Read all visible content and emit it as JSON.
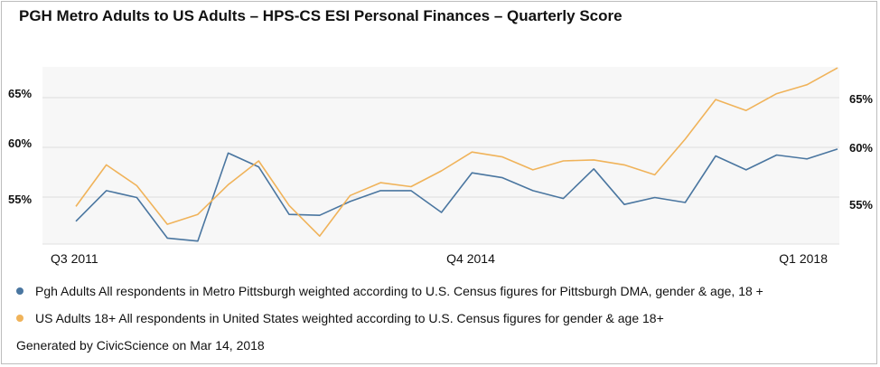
{
  "title": "PGH Metro Adults to US Adults – HPS-CS ESI Personal Finances – Quarterly Score",
  "footer": "Generated by CivicScience on Mar 14, 2018",
  "colors": {
    "pgh": "#4a76a0",
    "us": "#f0b35a",
    "plot_bg": "#f7f7f7",
    "grid": "#dcdcdc"
  },
  "chart_data": {
    "type": "line",
    "title": "PGH Metro Adults to US Adults – HPS-CS ESI Personal Finances – Quarterly Score",
    "x_labels": [
      "Q3 2011",
      "Q4 2014",
      "Q1 2018"
    ],
    "y_ticks_left": [
      "65%",
      "60%",
      "55%"
    ],
    "y_ticks_right": [
      "65%",
      "60%",
      "55%"
    ],
    "ylim": [
      50.3,
      68.2
    ],
    "grid": true,
    "series": [
      {
        "name": "Pgh Adults All respondents in Metro Pittsburgh weighted according to U.S. Census figures for Pittsburgh DMA, gender & age, 18 +",
        "color": "#4a76a0",
        "values": [
          52.6,
          55.7,
          55.0,
          50.9,
          50.6,
          59.5,
          58.1,
          53.3,
          53.2,
          54.6,
          55.7,
          55.7,
          53.5,
          57.5,
          57.0,
          55.7,
          54.9,
          57.9,
          54.3,
          55.0,
          54.5,
          59.2,
          57.8,
          59.3,
          58.9,
          59.9
        ]
      },
      {
        "name": "US Adults 18+ All respondents in United States weighted according to U.S. Census figures for gender & age 18+",
        "color": "#f0b35a",
        "values": [
          54.1,
          58.3,
          56.2,
          52.3,
          53.3,
          56.3,
          58.7,
          54.2,
          51.1,
          55.2,
          56.5,
          56.1,
          57.7,
          59.6,
          59.1,
          57.8,
          58.7,
          58.8,
          58.3,
          57.3,
          60.9,
          64.9,
          63.8,
          65.5,
          66.4,
          68.1
        ]
      }
    ]
  }
}
